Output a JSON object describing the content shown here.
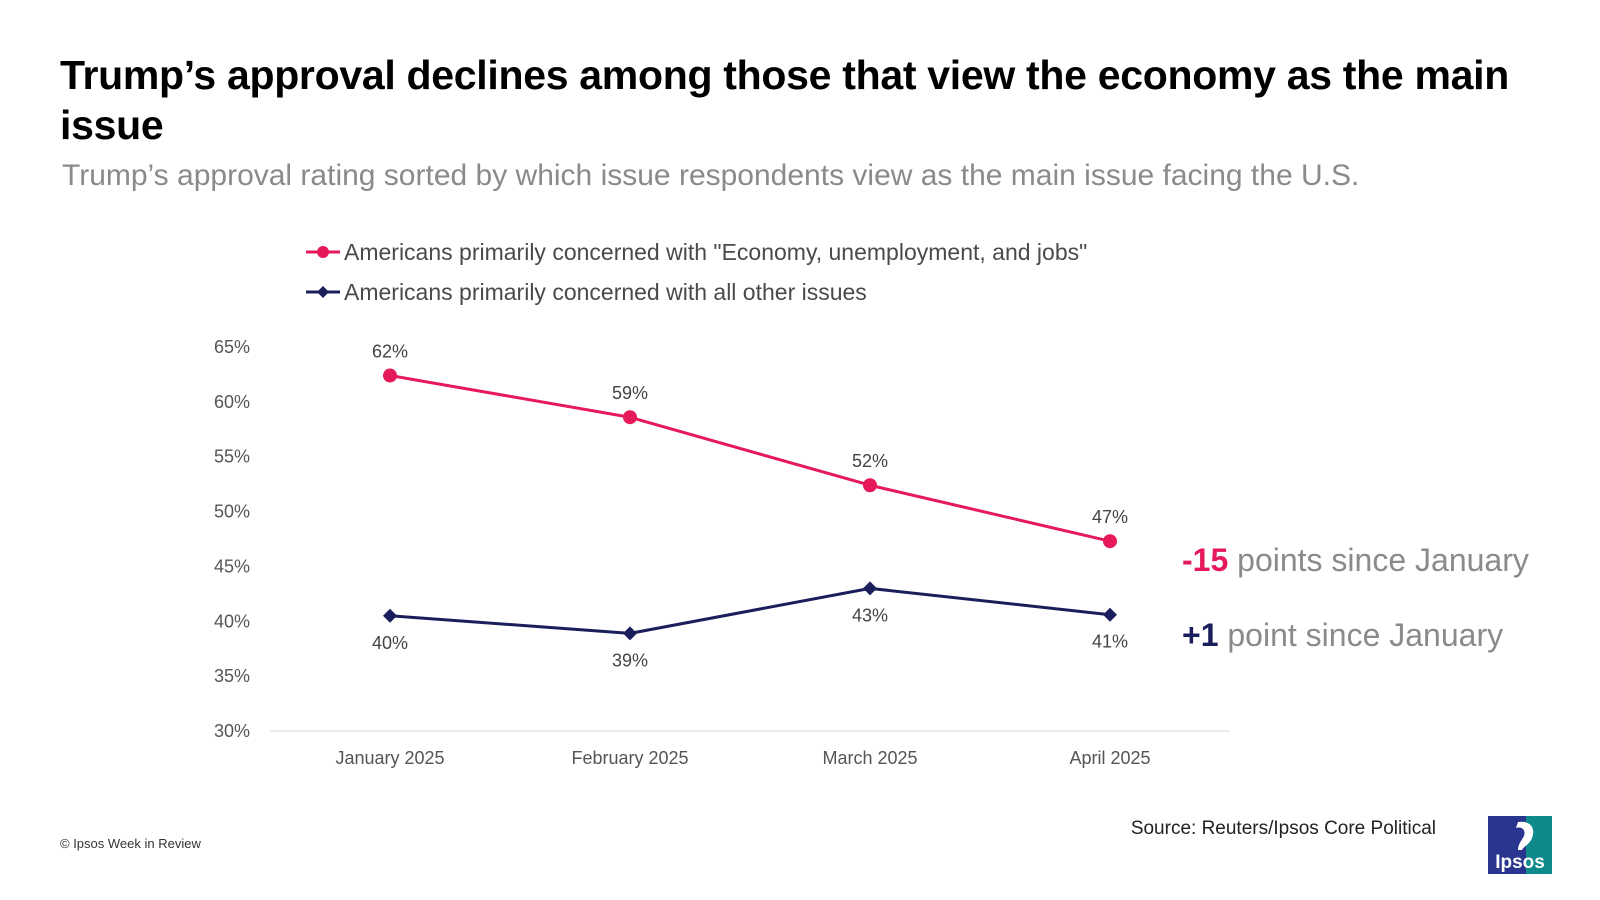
{
  "title": "Trump’s approval declines among those that view the economy as the main issue",
  "subtitle": "Trump’s approval rating sorted by which issue respondents view as the main issue facing the U.S.",
  "colors": {
    "economy": "#e6195a",
    "other": "#1a1f5c",
    "axis": "#d9d9d9",
    "subtitle": "#8a8a8a"
  },
  "chart_data": {
    "type": "line",
    "categories": [
      "January 2025",
      "February 2025",
      "March 2025",
      "April 2025"
    ],
    "y_tick_labels": [
      "65%",
      "60%",
      "55%",
      "50%",
      "45%",
      "40%",
      "35%",
      "30%"
    ],
    "ylim": [
      30,
      65
    ],
    "grid": false,
    "legend_position": "top",
    "series": [
      {
        "name": "Americans primarily concerned with \"Economy, unemployment, and jobs\"",
        "marker": "circle",
        "values": [
          62.4,
          58.6,
          52.4,
          47.3
        ],
        "labels": [
          "62%",
          "59%",
          "52%",
          "47%"
        ],
        "label_position": "above"
      },
      {
        "name": "Americans primarily concerned with all other issues",
        "marker": "diamond",
        "values": [
          40.5,
          38.9,
          43.0,
          40.6
        ],
        "labels": [
          "40%",
          "39%",
          "43%",
          "41%"
        ],
        "label_position": "below",
        "label_position_march": "below"
      }
    ],
    "annotations": [
      {
        "value": "-15",
        "text": " points since January"
      },
      {
        "value": "+1",
        "text": " point since January"
      }
    ]
  },
  "source": "Source: Reuters/Ipsos Core Political",
  "copyright": "© Ipsos Week in Review",
  "logo": {
    "icon": "ipsos-logo",
    "text": "Ipsos"
  }
}
